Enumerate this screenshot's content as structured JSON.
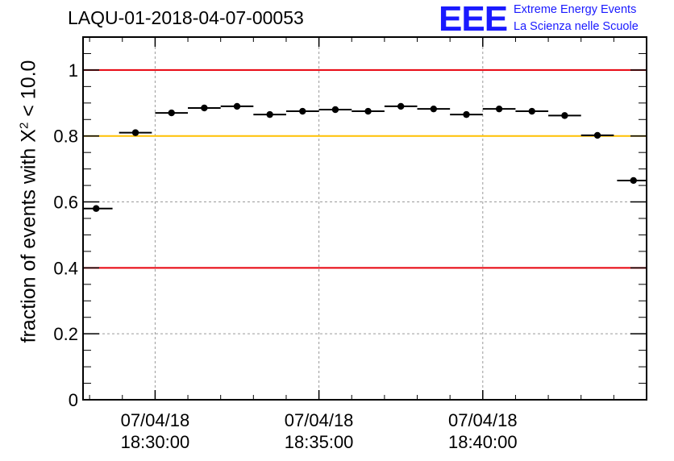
{
  "header": {
    "title": "LAQU-01-2018-04-07-00053",
    "logo": "EEE",
    "logo_line1": "Extreme Energy Events",
    "logo_line2": "La Scienza nelle Scuole"
  },
  "chart_data": {
    "type": "scatter",
    "title": "LAQU-01-2018-04-07-00053",
    "ylabel_prefix": "fraction of events with ",
    "ylabel_symbol": "X",
    "ylabel_sup": "2",
    "ylabel_suffix": " < 10.0",
    "xlabel": "",
    "x_unit": "minutes after 18:30:00",
    "xlim": [
      -2.2,
      15.0
    ],
    "ylim": [
      0,
      1.1
    ],
    "grid": true,
    "y_ticks": [
      0,
      0.2,
      0.4,
      0.6,
      0.8,
      1
    ],
    "y_tick_labels": [
      "0",
      "0.2",
      "0.4",
      "0.6",
      "0.8",
      "1"
    ],
    "x_ticks": [
      0,
      5,
      10
    ],
    "x_tick_labels": [
      {
        "date": "07/04/18",
        "time": "18:30:00"
      },
      {
        "date": "07/04/18",
        "time": "18:35:00"
      },
      {
        "date": "07/04/18",
        "time": "18:40:00"
      }
    ],
    "bin_width_min": 1.0,
    "x": [
      -1.8,
      -0.6,
      0.5,
      1.5,
      2.5,
      3.5,
      4.5,
      5.5,
      6.5,
      7.5,
      8.5,
      9.5,
      10.5,
      11.5,
      12.5,
      13.5,
      14.6
    ],
    "values": [
      0.58,
      0.81,
      0.87,
      0.885,
      0.89,
      0.865,
      0.875,
      0.88,
      0.875,
      0.89,
      0.882,
      0.865,
      0.882,
      0.875,
      0.862,
      0.802,
      0.665
    ],
    "reference_lines": [
      {
        "y": 1.0,
        "color": "#e8000b"
      },
      {
        "y": 0.8,
        "color": "#ffc000"
      },
      {
        "y": 0.4,
        "color": "#e8000b"
      }
    ]
  }
}
